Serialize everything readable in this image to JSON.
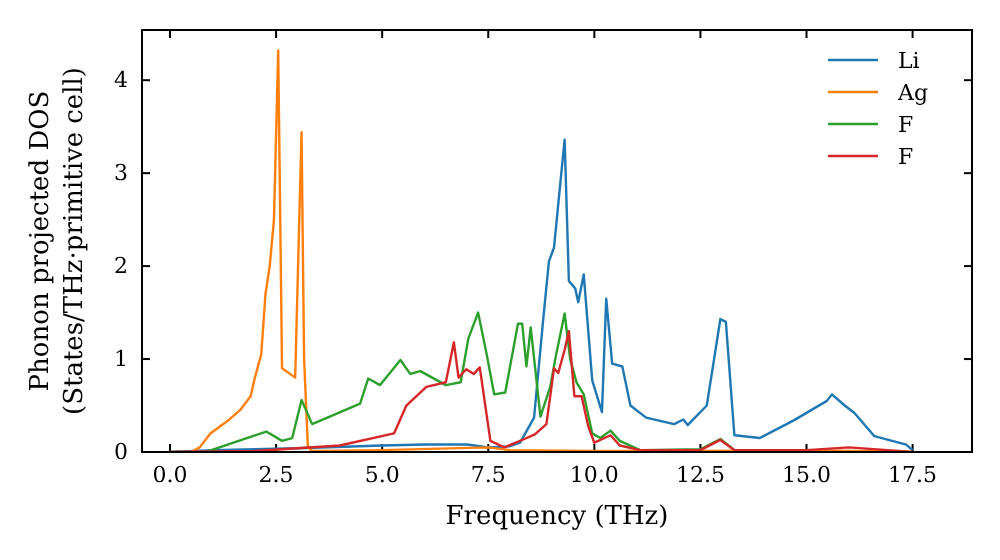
{
  "chart_data": {
    "type": "line",
    "xlabel": "Frequency (THz)",
    "ylabel": "Phonon projected DOS\n(States/THz·primitive cell)",
    "xlim": [
      -0.66,
      18.9
    ],
    "ylim": [
      0,
      4.54
    ],
    "xticks": [
      {
        "value": 0,
        "label": "0.0"
      },
      {
        "value": 2.5,
        "label": "2.5"
      },
      {
        "value": 5,
        "label": "5.0"
      },
      {
        "value": 7.5,
        "label": "7.5"
      },
      {
        "value": 10,
        "label": "10.0"
      },
      {
        "value": 12.5,
        "label": "12.5"
      },
      {
        "value": 15,
        "label": "15.0"
      },
      {
        "value": 17.5,
        "label": "17.5"
      }
    ],
    "yticks": [
      0,
      1,
      2,
      3,
      4
    ],
    "grid": false,
    "legend": "top right",
    "series": [
      {
        "name": "Li",
        "color": "#1f77b4",
        "x": [
          0,
          1,
          3,
          5,
          6,
          7,
          7.5,
          8,
          8.25,
          8.58,
          8.8,
          8.93,
          9.05,
          9.2,
          9.3,
          9.4,
          9.55,
          9.62,
          9.75,
          9.95,
          10.18,
          10.28,
          10.42,
          10.66,
          10.85,
          11.22,
          11.88,
          12.1,
          12.2,
          12.65,
          12.97,
          13.1,
          13.3,
          13.9,
          14.7,
          15.48,
          15.6,
          15.9,
          16.13,
          16.6,
          17.35,
          17.5
        ],
        "values": [
          0,
          0.02,
          0.04,
          0.07,
          0.08,
          0.08,
          0.05,
          0.06,
          0.1,
          0.37,
          1.45,
          2.05,
          2.2,
          2.9,
          3.36,
          1.84,
          1.76,
          1.61,
          1.91,
          0.77,
          0.43,
          1.65,
          0.95,
          0.92,
          0.5,
          0.37,
          0.3,
          0.35,
          0.29,
          0.5,
          1.43,
          1.4,
          0.18,
          0.15,
          0.34,
          0.55,
          0.62,
          0.5,
          0.42,
          0.17,
          0.08,
          0.02
        ]
      },
      {
        "name": "Ag",
        "color": "#ff7f0e",
        "x": [
          0,
          0.5,
          0.7,
          0.95,
          1.4,
          1.65,
          1.9,
          2.0,
          2.15,
          2.25,
          2.35,
          2.45,
          2.55,
          2.64,
          2.95,
          3.1,
          3.16,
          3.25,
          3.35,
          5,
          7.5,
          8,
          10,
          12.5,
          15,
          17.5
        ],
        "values": [
          0,
          0,
          0.05,
          0.2,
          0.35,
          0.45,
          0.6,
          0.8,
          1.05,
          1.7,
          2.0,
          2.5,
          4.32,
          0.9,
          0.8,
          3.44,
          1.0,
          0.05,
          0.01,
          0.02,
          0.05,
          0.02,
          0.01,
          0.01,
          0.02,
          0
        ]
      },
      {
        "name": "F",
        "color": "#2ca02c",
        "x": [
          0,
          0.85,
          2.27,
          2.64,
          2.88,
          3.1,
          3.35,
          4.48,
          4.67,
          4.95,
          5.43,
          5.66,
          5.9,
          6.5,
          6.85,
          7.03,
          7.26,
          7.45,
          7.64,
          7.9,
          8.2,
          8.3,
          8.4,
          8.5,
          8.73,
          8.96,
          9.1,
          9.3,
          9.43,
          9.58,
          9.75,
          9.95,
          10.14,
          10.38,
          10.6,
          11.08,
          12.5,
          12.97,
          13.3,
          15
        ],
        "values": [
          0,
          0,
          0.22,
          0.12,
          0.15,
          0.56,
          0.3,
          0.52,
          0.79,
          0.72,
          0.99,
          0.84,
          0.87,
          0.72,
          0.75,
          1.22,
          1.5,
          1.08,
          0.62,
          0.64,
          1.38,
          1.38,
          0.92,
          1.34,
          0.38,
          0.7,
          1.05,
          1.49,
          1.0,
          0.75,
          0.62,
          0.2,
          0.15,
          0.23,
          0.12,
          0.02,
          0.03,
          0.14,
          0.02,
          0.02
        ]
      },
      {
        "name": "F",
        "color": "#d62728",
        "x": [
          0,
          2,
          4,
          5.28,
          5.57,
          6.04,
          6.5,
          6.69,
          6.8,
          6.98,
          7.16,
          7.3,
          7.55,
          7.88,
          8.35,
          8.6,
          8.87,
          9.05,
          9.15,
          9.3,
          9.4,
          9.53,
          9.7,
          9.86,
          10.0,
          10.38,
          10.6,
          11.08,
          12.5,
          12.97,
          13.3,
          15,
          16,
          17.5
        ],
        "values": [
          0,
          0.01,
          0.07,
          0.2,
          0.5,
          0.7,
          0.75,
          1.18,
          0.8,
          0.89,
          0.84,
          0.91,
          0.12,
          0.05,
          0.14,
          0.19,
          0.3,
          0.9,
          0.85,
          1.1,
          1.3,
          0.6,
          0.6,
          0.27,
          0.1,
          0.18,
          0.07,
          0.02,
          0.02,
          0.13,
          0.02,
          0.02,
          0.05,
          0
        ]
      }
    ]
  }
}
